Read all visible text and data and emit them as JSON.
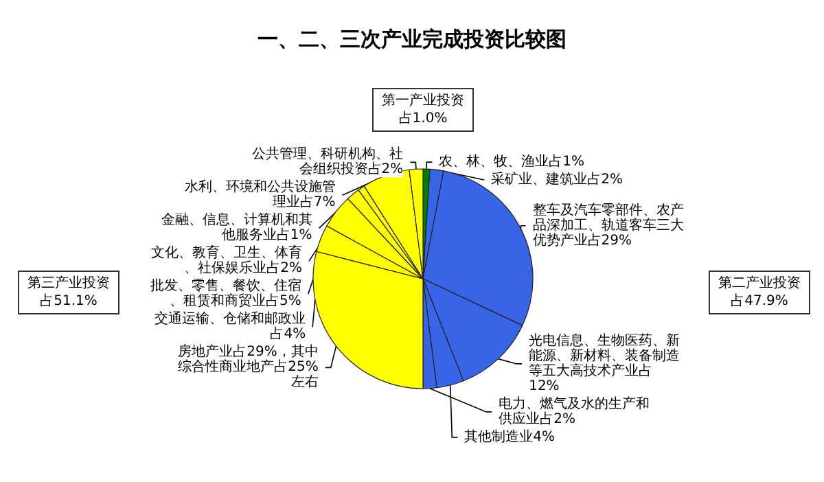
{
  "chart_data": {
    "type": "pie",
    "title": "一、二、三次产业完成投资比较图",
    "categories": [
      "农、林、牧、渔业占1%",
      "采矿业、建筑业占2%",
      "整车及汽车零部件、农产品深加工、轨道客车三大优势产业占29%",
      "光电信息、生物医药、新能源、新材料、装备制造等五大高技术产业占12%",
      "其他制造业4%",
      "电力、燃气及水的生产和供应业占2%",
      "房地产业占29%，其中综合性商业地产占25%左右",
      "交通运输、仓储和邮政业占4%",
      "批发、零售、餐饮、住宿、租赁和商贸业占5%",
      "文化、教育、卫生、体育、社保娱乐业占2%",
      "金融、信息、计算机和其他服务业占1%",
      "水利、环境和公共设施管理业占7%",
      "公共管理、科研机构、社会组织投资占2%"
    ],
    "values": [
      1,
      2,
      29,
      12,
      4,
      2,
      29,
      4,
      5,
      2,
      1,
      7,
      2
    ],
    "colors": [
      "#008000",
      "#3a64e6",
      "#3a64e6",
      "#3a64e6",
      "#3a64e6",
      "#3a64e6",
      "#ffff00",
      "#ffff00",
      "#ffff00",
      "#ffff00",
      "#ffff00",
      "#ffff00",
      "#ffff00"
    ],
    "annotations": [
      "第一产业投资占1.0%",
      "第二产业投资占47.9%",
      "第三产业投资占51.1%"
    ]
  }
}
